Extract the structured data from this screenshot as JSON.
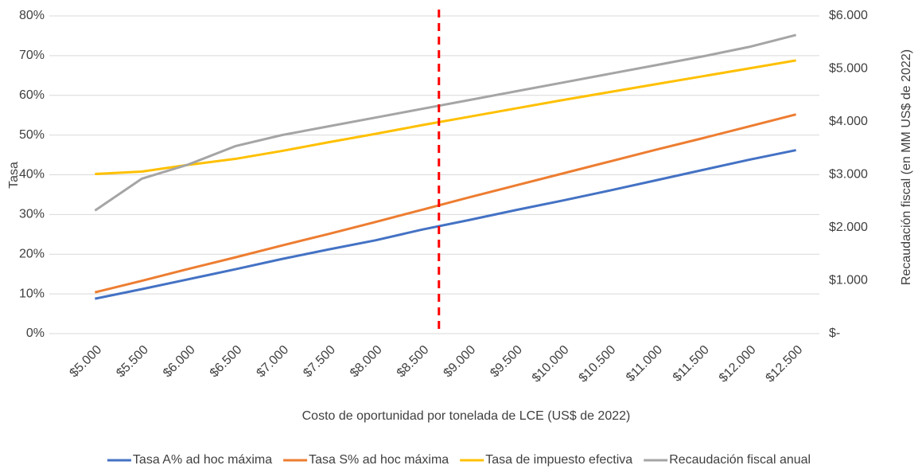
{
  "chart_data": {
    "type": "line",
    "x_label": "Costo de oportunidad por tonelada de LCE (US$ de 2022)",
    "y_label": "Tasa",
    "y2_label": "Recaudación fiscal (en MM US$ de 2022)",
    "x": [
      5000,
      5500,
      6000,
      6500,
      7000,
      7500,
      8000,
      8500,
      9000,
      9500,
      10000,
      10500,
      11000,
      11500,
      12000,
      12500
    ],
    "xlim": [
      4750,
      12750
    ],
    "xticks": [
      {
        "value": 5000,
        "label": "$5.000"
      },
      {
        "value": 5500,
        "label": "$5.500"
      },
      {
        "value": 6000,
        "label": "$6.000"
      },
      {
        "value": 6500,
        "label": "$6.500"
      },
      {
        "value": 7000,
        "label": "$7.000"
      },
      {
        "value": 7500,
        "label": "$7.500"
      },
      {
        "value": 8000,
        "label": "$8.000"
      },
      {
        "value": 8500,
        "label": "$8.500"
      },
      {
        "value": 9000,
        "label": "$9.000"
      },
      {
        "value": 9500,
        "label": "$9.500"
      },
      {
        "value": 10000,
        "label": "$10.000"
      },
      {
        "value": 10500,
        "label": "$10.500"
      },
      {
        "value": 11000,
        "label": "$11.000"
      },
      {
        "value": 11500,
        "label": "$11.500"
      },
      {
        "value": 12000,
        "label": "$12.000"
      },
      {
        "value": 12500,
        "label": "$12.500"
      }
    ],
    "ylim": [
      0,
      80
    ],
    "yticks": [
      {
        "value": 0,
        "label": "0%"
      },
      {
        "value": 10,
        "label": "10%"
      },
      {
        "value": 20,
        "label": "20%"
      },
      {
        "value": 30,
        "label": "30%"
      },
      {
        "value": 40,
        "label": "40%"
      },
      {
        "value": 50,
        "label": "50%"
      },
      {
        "value": 60,
        "label": "60%"
      },
      {
        "value": 70,
        "label": "70%"
      },
      {
        "value": 80,
        "label": "80%"
      }
    ],
    "y2lim": [
      0,
      6000
    ],
    "y2ticks": [
      {
        "value": 0,
        "label": "$-"
      },
      {
        "value": 1000,
        "label": "$1.000"
      },
      {
        "value": 2000,
        "label": "$2.000"
      },
      {
        "value": 3000,
        "label": "$3.000"
      },
      {
        "value": 4000,
        "label": "$4.000"
      },
      {
        "value": 5000,
        "label": "$5.000"
      },
      {
        "value": 6000,
        "label": "$6.000"
      }
    ],
    "grid": true,
    "legend": "bottom",
    "reference_line": {
      "x": 8680,
      "color": "#ff0000"
    },
    "series": [
      {
        "name": "Tasa A% ad hoc máxima",
        "color": "#4472c4",
        "values": [
          8.8,
          11.2,
          13.7,
          16.2,
          18.8,
          21.2,
          23.5,
          26.2,
          28.6,
          31.1,
          33.5,
          36.0,
          38.6,
          41.2,
          43.8,
          46.2
        ]
      },
      {
        "name": "Tasa S% ad hoc máxima",
        "color": "#ed7d31",
        "values": [
          10.4,
          13.3,
          16.3,
          19.2,
          22.2,
          25.1,
          28.1,
          31.2,
          34.3,
          37.3,
          40.3,
          43.3,
          46.3,
          49.2,
          52.2,
          55.2
        ]
      },
      {
        "name": "Tasa de impuesto efectiva",
        "color": "#ffc000",
        "values": [
          40.2,
          40.8,
          42.5,
          44.0,
          46.0,
          48.2,
          50.3,
          52.5,
          54.6,
          56.7,
          58.8,
          60.8,
          62.8,
          64.8,
          66.8,
          68.8
        ]
      },
      {
        "name": "Recaudación fiscal anual",
        "color": "#a5a5a5",
        "axis": "y2",
        "values": [
          2325,
          2925,
          3195,
          3540,
          3750,
          3915,
          4080,
          4245,
          4410,
          4575,
          4740,
          4905,
          5070,
          5235,
          5415,
          5640
        ]
      }
    ]
  }
}
